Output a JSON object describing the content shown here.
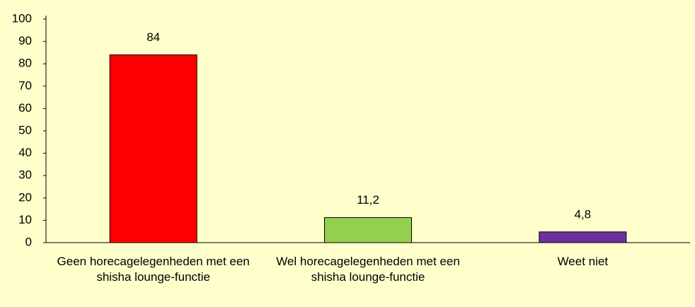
{
  "chart_data": {
    "type": "bar",
    "categories": [
      "Geen horecagelegenheden met een shisha lounge-functie",
      "Wel horecagelegenheden met een shisha lounge-functie",
      "Weet niet"
    ],
    "values": [
      84,
      11.2,
      4.8
    ],
    "value_labels": [
      "84",
      "11,2",
      "4,8"
    ],
    "colors": [
      "#ff0000",
      "#92d050",
      "#7030a0"
    ],
    "ylim": [
      0,
      100
    ],
    "yticks": [
      0,
      10,
      20,
      30,
      40,
      50,
      60,
      70,
      80,
      90,
      100
    ],
    "grid": false
  }
}
